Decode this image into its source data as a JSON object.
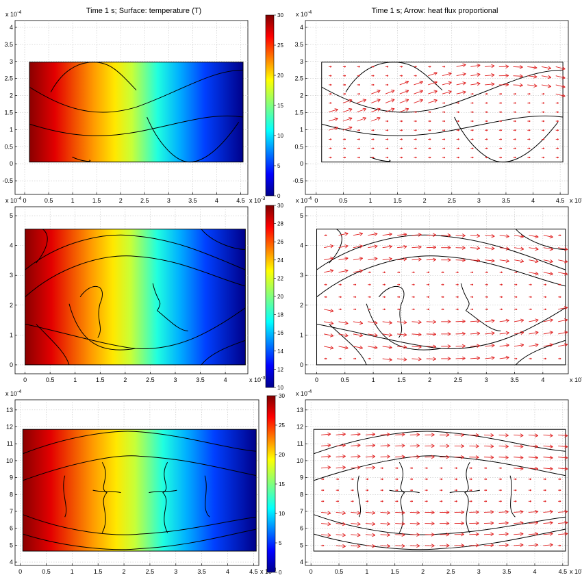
{
  "titles": {
    "left": "Time 1 s; Surface: temperature (T)",
    "right": "Time 1 s; Arrow: heat flux proportional"
  },
  "chart_data": [
    {
      "type": "heatmap",
      "row": 1,
      "column": "left",
      "x_exponent": "x 10",
      "x_exponent_power": "-3",
      "y_exponent": "x 10",
      "y_exponent_power": "-4",
      "xlim": [
        -0.2,
        4.65
      ],
      "ylim": [
        -0.9,
        4.2
      ],
      "xticks": [
        "0",
        "0.5",
        "1",
        "1.5",
        "2",
        "2.5",
        "3",
        "3.5",
        "4",
        "4.5"
      ],
      "yticks": [
        "-0.5",
        "0",
        "0.5",
        "1",
        "1.5",
        "2",
        "2.5",
        "3",
        "3.5",
        "4"
      ],
      "domain": {
        "x": [
          0.1,
          4.55
        ],
        "y": [
          0.05,
          2.98
        ]
      },
      "surface_temperature_range": [
        0,
        30
      ],
      "colorbar_ticks": [
        "0",
        "5",
        "10",
        "15",
        "20",
        "25",
        "30"
      ],
      "gradient": "left-to-right hot-to-cold"
    },
    {
      "type": "quiver",
      "row": 1,
      "column": "right",
      "x_exponent": "x 10",
      "x_exponent_power": "-3",
      "y_exponent": "x 10",
      "y_exponent_power": "-4",
      "xlim": [
        -0.2,
        4.65
      ],
      "ylim": [
        -0.9,
        4.2
      ],
      "xticks": [
        "0",
        "0.5",
        "1",
        "1.5",
        "2",
        "2.5",
        "3",
        "3.5",
        "4",
        "4.5"
      ],
      "yticks": [
        "-0.5",
        "0",
        "0.5",
        "1",
        "1.5",
        "2",
        "2.5",
        "3",
        "3.5",
        "4"
      ],
      "domain": {
        "x": [
          0.1,
          4.55
        ],
        "y": [
          0.05,
          2.98
        ]
      },
      "arrow_color": "#e02020",
      "arrow_direction": "+x"
    },
    {
      "type": "heatmap",
      "row": 2,
      "column": "left",
      "x_exponent": "x 10",
      "x_exponent_power": "-3",
      "y_exponent": "x 10",
      "y_exponent_power": "-4",
      "xlim": [
        -0.2,
        4.45
      ],
      "ylim": [
        -0.3,
        5.3
      ],
      "xticks": [
        "0",
        "0.5",
        "1",
        "1.5",
        "2",
        "2.5",
        "3",
        "3.5",
        "4"
      ],
      "yticks": [
        "0",
        "1",
        "2",
        "3",
        "4",
        "5"
      ],
      "domain": {
        "x": [
          0,
          4.4
        ],
        "y": [
          0,
          4.55
        ]
      },
      "surface_temperature_range": [
        10,
        30
      ],
      "colorbar_ticks": [
        "10",
        "12",
        "14",
        "16",
        "18",
        "20",
        "22",
        "24",
        "26",
        "28",
        "30"
      ],
      "gradient": "left-to-right hot-to-cold"
    },
    {
      "type": "quiver",
      "row": 2,
      "column": "right",
      "x_exponent": "x 10",
      "x_exponent_power": "-3",
      "y_exponent": "x 10",
      "y_exponent_power": "-4",
      "xlim": [
        -0.2,
        4.45
      ],
      "ylim": [
        -0.3,
        5.3
      ],
      "xticks": [
        "0",
        "0.5",
        "1",
        "1.5",
        "2",
        "2.5",
        "3",
        "3.5",
        "4"
      ],
      "yticks": [
        "0",
        "1",
        "2",
        "3",
        "4",
        "5"
      ],
      "domain": {
        "x": [
          0,
          4.4
        ],
        "y": [
          0,
          4.55
        ]
      },
      "arrow_color": "#e02020",
      "arrow_direction": "+x"
    },
    {
      "type": "heatmap",
      "row": 3,
      "column": "left",
      "x_exponent": "x 10",
      "x_exponent_power": "-3",
      "y_exponent": "x 10",
      "y_exponent_power": "-4",
      "xlim": [
        -0.1,
        4.6
      ],
      "ylim": [
        3.8,
        13.6
      ],
      "xticks": [
        "0",
        "0.5",
        "1",
        "1.5",
        "2",
        "2.5",
        "3",
        "3.5",
        "4",
        "4.5"
      ],
      "yticks": [
        "4",
        "5",
        "6",
        "7",
        "8",
        "9",
        "10",
        "11",
        "12",
        "13"
      ],
      "domain": {
        "x": [
          0.05,
          4.55
        ],
        "y": [
          4.65,
          11.85
        ]
      },
      "surface_temperature_range": [
        0,
        30
      ],
      "colorbar_ticks": [
        "0",
        "5",
        "10",
        "15",
        "20",
        "25",
        "30"
      ],
      "gradient": "left-to-right hot-to-cold"
    },
    {
      "type": "quiver",
      "row": 3,
      "column": "right",
      "x_exponent": "x 10",
      "x_exponent_power": "-3",
      "y_exponent": "x 10",
      "y_exponent_power": "-4",
      "xlim": [
        -0.1,
        4.6
      ],
      "ylim": [
        3.8,
        13.6
      ],
      "xticks": [
        "0",
        "0.5",
        "1",
        "1.5",
        "2",
        "2.5",
        "3",
        "3.5",
        "4",
        "4.5"
      ],
      "yticks": [
        "4",
        "5",
        "6",
        "7",
        "8",
        "9",
        "10",
        "11",
        "12",
        "13"
      ],
      "domain": {
        "x": [
          0.05,
          4.55
        ],
        "y": [
          4.65,
          11.85
        ]
      },
      "arrow_color": "#e02020",
      "arrow_direction": "+x"
    }
  ]
}
